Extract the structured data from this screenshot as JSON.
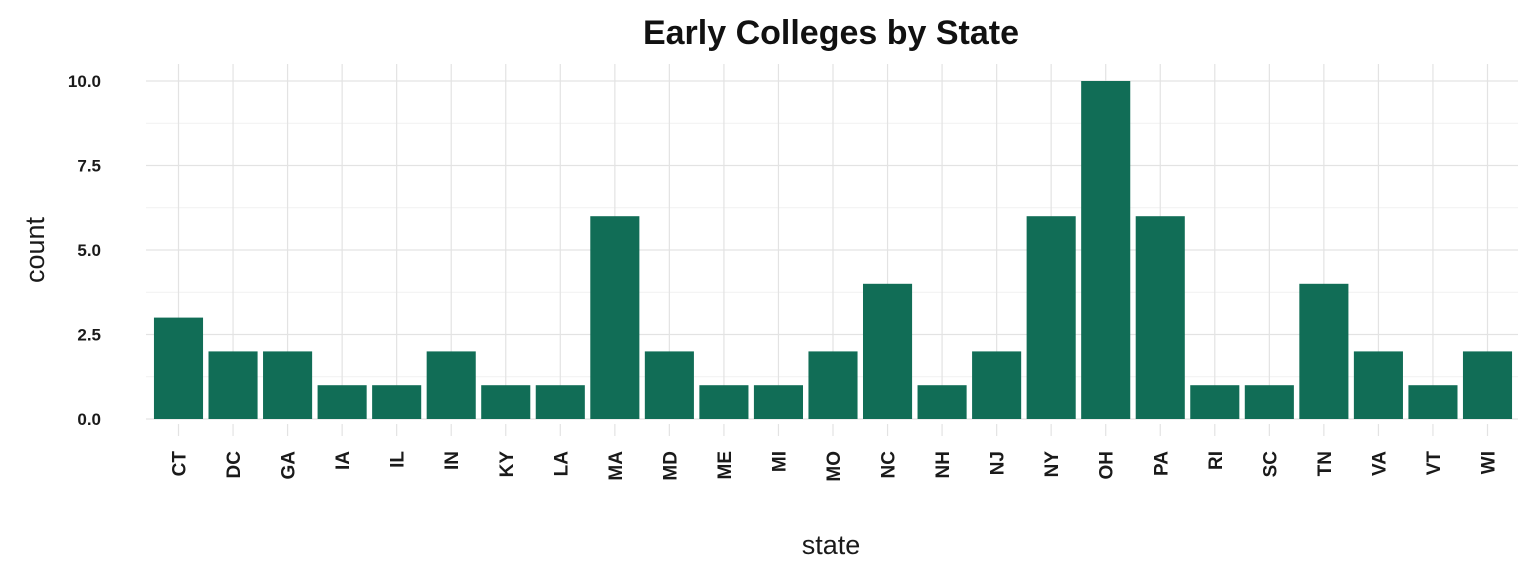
{
  "chart_data": {
    "type": "bar",
    "title": "Early Colleges by State",
    "xlabel": "state",
    "ylabel": "count",
    "categories": [
      "CT",
      "DC",
      "GA",
      "IA",
      "IL",
      "IN",
      "KY",
      "LA",
      "MA",
      "MD",
      "ME",
      "MI",
      "MO",
      "NC",
      "NH",
      "NJ",
      "NY",
      "OH",
      "PA",
      "RI",
      "SC",
      "TN",
      "VA",
      "VT",
      "WI"
    ],
    "values": [
      3,
      2,
      2,
      1,
      1,
      2,
      1,
      1,
      6,
      2,
      1,
      1,
      2,
      4,
      1,
      2,
      6,
      10,
      6,
      1,
      1,
      4,
      2,
      1,
      2
    ],
    "ylim": [
      0,
      10
    ],
    "yticks": [
      "0.0",
      "2.5",
      "5.0",
      "7.5",
      "10.0"
    ],
    "grid": true,
    "legend": "none",
    "bar_color": "#116d56"
  }
}
